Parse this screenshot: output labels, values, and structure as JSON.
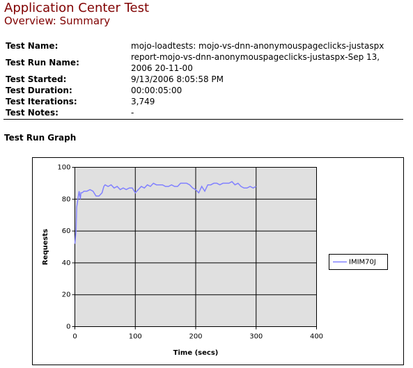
{
  "header": {
    "title": "Application Center Test",
    "subtitle": "Overview: Summary"
  },
  "fields": [
    {
      "label": "Test Name:",
      "value": "mojo-loadtests: mojo-vs-dnn-anonymouspageclicks-justaspx"
    },
    {
      "label": "Test Run Name:",
      "value": "report-mojo-vs-dnn-anonymouspageclicks-justaspx-Sep 13, 2006 20-11-00"
    },
    {
      "label": "Test Started:",
      "value": "9/13/2006 8:05:58 PM"
    },
    {
      "label": "Test Duration:",
      "value": "00:00:05:00"
    },
    {
      "label": "Test Iterations:",
      "value": "3,749"
    },
    {
      "label": "Test Notes:",
      "value": "-"
    }
  ],
  "section_title": "Test Run Graph",
  "chart_data": {
    "type": "line",
    "xlabel": "Time (secs)",
    "ylabel": "Requests",
    "x": [
      0,
      2,
      3,
      5,
      7,
      9,
      10,
      12,
      15,
      20,
      25,
      30,
      35,
      40,
      45,
      48,
      50,
      55,
      60,
      65,
      70,
      75,
      80,
      85,
      90,
      95,
      100,
      105,
      110,
      115,
      120,
      125,
      130,
      135,
      140,
      145,
      150,
      155,
      160,
      165,
      170,
      175,
      180,
      185,
      190,
      195,
      200,
      205,
      210,
      215,
      220,
      225,
      230,
      235,
      240,
      245,
      250,
      255,
      260,
      265,
      270,
      275,
      280,
      285,
      290,
      295,
      300
    ],
    "series": [
      {
        "name": "IMIM70J",
        "color": "#8080ff",
        "values": [
          52,
          60,
          75,
          80,
          85,
          80,
          84,
          84,
          85,
          85,
          86,
          85,
          82,
          82,
          84,
          88,
          89,
          88,
          89,
          87,
          88,
          86,
          87,
          86,
          87,
          87,
          84,
          86,
          88,
          87,
          89,
          88,
          90,
          89,
          89,
          89,
          88,
          88,
          89,
          88,
          88,
          90,
          90,
          90,
          89,
          87,
          86,
          84,
          88,
          85,
          89,
          89,
          90,
          90,
          89,
          90,
          90,
          90,
          91,
          89,
          90,
          88,
          87,
          87,
          88,
          87,
          88
        ]
      }
    ],
    "xlim": [
      0,
      400
    ],
    "xticks": [
      0,
      100,
      200,
      300,
      400
    ],
    "ylim": [
      0,
      100
    ],
    "yticks": [
      0,
      20,
      40,
      60,
      80,
      100
    ],
    "grid": true,
    "legend": "right"
  }
}
